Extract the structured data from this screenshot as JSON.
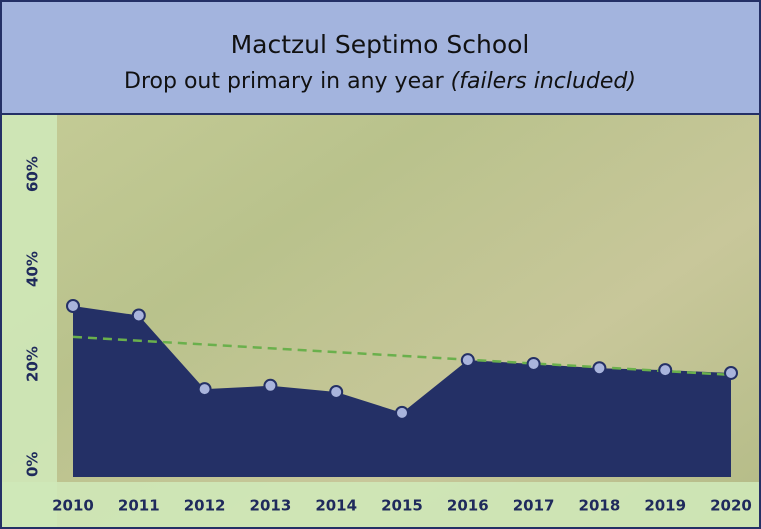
{
  "chart_data": {
    "type": "area",
    "title": "Mactzul Septimo School",
    "subtitle": "Drop out primary in any year",
    "subtitle_note": "(failers included)",
    "categories": [
      "2010",
      "2011",
      "2012",
      "2013",
      "2014",
      "2015",
      "2016",
      "2017",
      "2018",
      "2019",
      "2020"
    ],
    "series": [
      {
        "color": "#243066",
        "values": [
          36,
          34,
          18.5,
          19.2,
          17.9,
          13.5,
          24.6,
          23.8,
          22.9,
          22.5,
          21.9
        ]
      }
    ],
    "trend": {
      "color": "#6ab04c",
      "values": [
        29.5,
        21.5
      ]
    },
    "ylim": [
      0,
      76
    ],
    "yticks": [
      {
        "value": 0,
        "label": "0%"
      },
      {
        "value": 20,
        "label": "20%"
      },
      {
        "value": 40,
        "label": "40%"
      },
      {
        "value": 60,
        "label": "60%"
      }
    ],
    "grid": false
  }
}
